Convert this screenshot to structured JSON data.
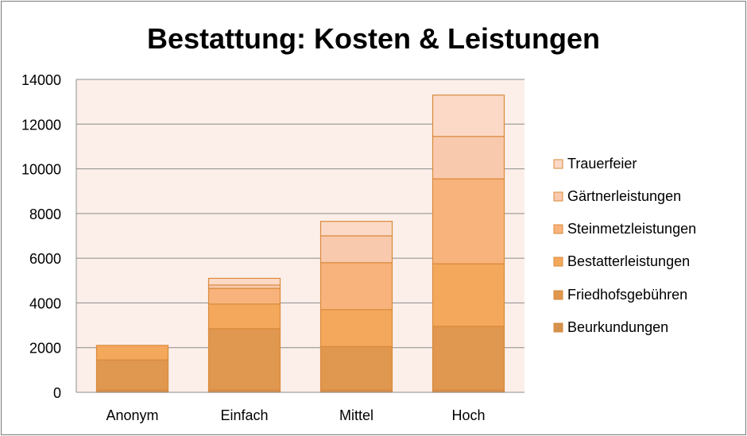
{
  "chart_data": {
    "type": "bar",
    "stacked": true,
    "title": "Bestattung: Kosten & Leistungen",
    "categories": [
      "Anonym",
      "Einfach",
      "Mittel",
      "Hoch"
    ],
    "ylim": [
      0,
      14000
    ],
    "yticks": [
      0,
      2000,
      4000,
      6000,
      8000,
      10000,
      12000,
      14000
    ],
    "grid": true,
    "legend_position": "right",
    "series": [
      {
        "name": "Beurkundungen",
        "values": [
          100,
          100,
          100,
          100
        ],
        "color": "#d5914e"
      },
      {
        "name": "Friedhofsgebühren",
        "values": [
          1350,
          2750,
          1950,
          2850
        ],
        "color": "#e0974f"
      },
      {
        "name": "Bestatterleistungen",
        "values": [
          650,
          1100,
          1650,
          2800
        ],
        "color": "#f4a85c"
      },
      {
        "name": "Steinmetzleistungen",
        "values": [
          0,
          700,
          2100,
          3800
        ],
        "color": "#f8b37c"
      },
      {
        "name": "Gärtnerleistungen",
        "values": [
          0,
          150,
          1200,
          1900
        ],
        "color": "#f9c9ad"
      },
      {
        "name": "Trauerfeier",
        "values": [
          0,
          300,
          650,
          1850
        ],
        "color": "#fbd9c6"
      }
    ]
  }
}
